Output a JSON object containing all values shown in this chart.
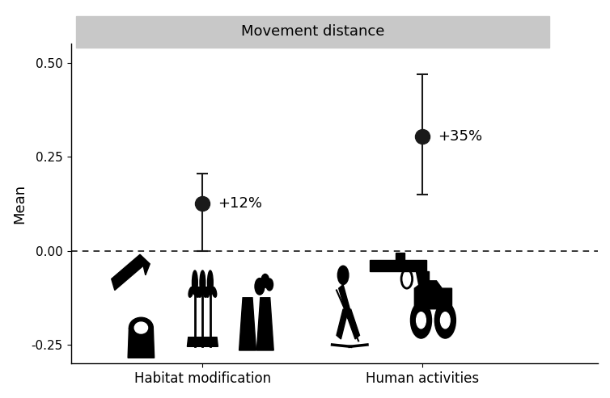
{
  "title": "Movement distance",
  "ylabel": "Mean",
  "categories": [
    "Habitat modification",
    "Human activities"
  ],
  "means": [
    0.125,
    0.305
  ],
  "error_upper": [
    0.205,
    0.47
  ],
  "error_lower": [
    0.0,
    0.15
  ],
  "labels": [
    "+12%",
    "+35%"
  ],
  "ylim": [
    -0.3,
    0.55
  ],
  "yticks": [
    -0.25,
    0.0,
    0.25,
    0.5
  ],
  "ytick_labels": [
    "-0.25",
    "0.00",
    "0.25",
    "0.50"
  ],
  "title_bg_color": "#c8c8c8",
  "marker_color": "#1a1a1a",
  "capsize": 5,
  "linewidth": 1.5,
  "dashed_line_y": 0.0,
  "label_fontsize": 12,
  "title_fontsize": 13,
  "ylabel_fontsize": 13,
  "tick_fontsize": 11,
  "annotation_fontsize": 13,
  "x_positions": [
    1.0,
    2.0
  ],
  "xlim": [
    0.4,
    2.8
  ]
}
